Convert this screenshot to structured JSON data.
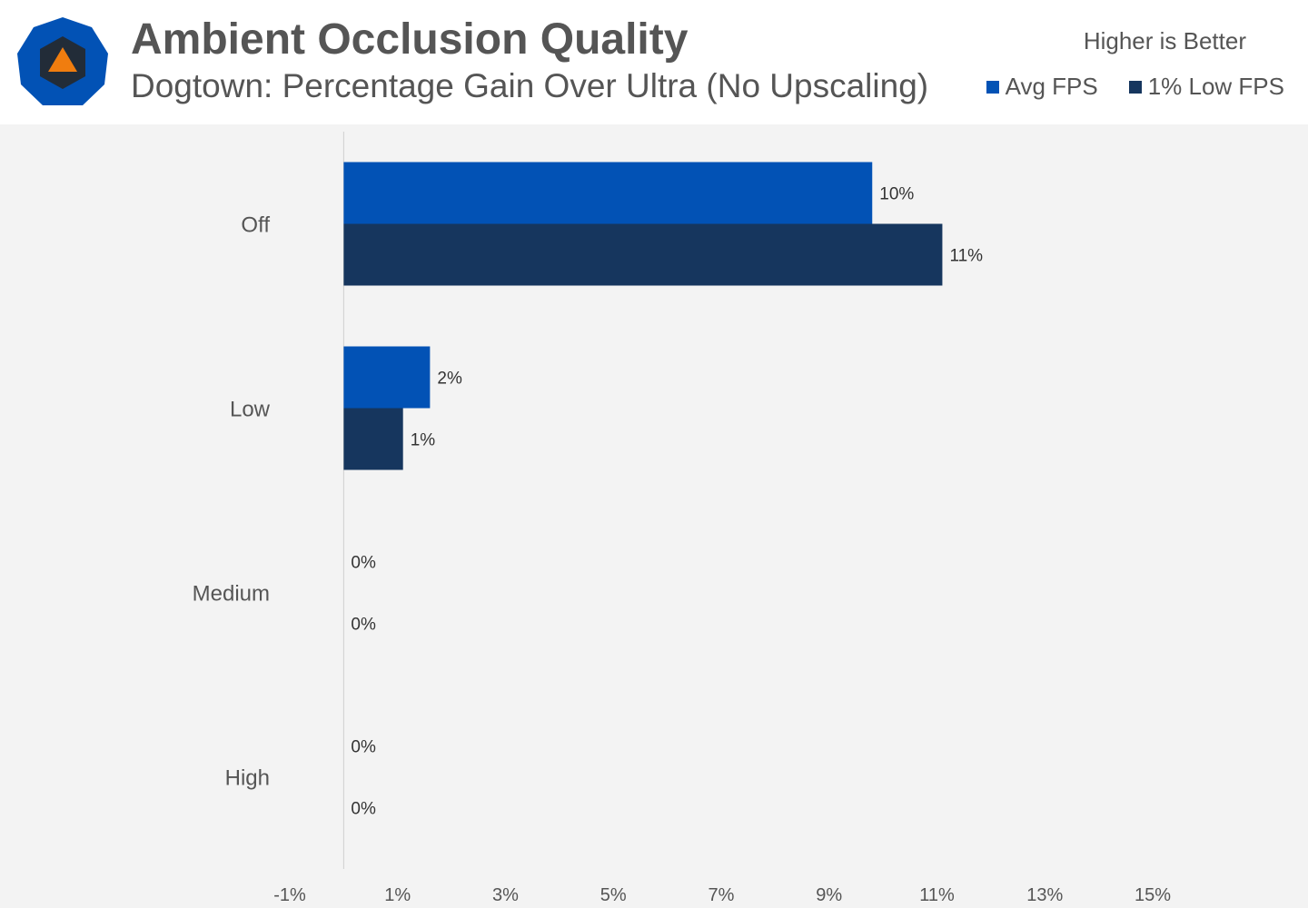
{
  "header": {
    "title": "Ambient Occlusion Quality",
    "subtitle": "Dogtown: Percentage Gain Over Ultra (No Upscaling)",
    "note": "Higher is Better",
    "logo_icon": "techspot-logo-icon"
  },
  "colors": {
    "avg_fps": "#0252b5",
    "low_fps": "#16365e",
    "logo_outer": "#0252b5",
    "logo_inner": "#222c38",
    "logo_triangle": "#f07d0f",
    "text": "#555555",
    "value_label": "#333333",
    "plot_background": "#f3f3f3"
  },
  "chart_data": {
    "type": "bar",
    "orientation": "horizontal",
    "categories": [
      "Off",
      "Low",
      "Medium",
      "High"
    ],
    "series": [
      {
        "name": "Avg FPS",
        "values": [
          9.8,
          1.6,
          0,
          0
        ],
        "labels": [
          "10%",
          "2%",
          "0%",
          "0%"
        ]
      },
      {
        "name": "1% Low FPS",
        "values": [
          11.1,
          1.1,
          0,
          0
        ],
        "labels": [
          "11%",
          "1%",
          "0%",
          "0%"
        ]
      }
    ],
    "xlim": [
      -1,
      15
    ],
    "xticks": [
      "-1%",
      "1%",
      "3%",
      "5%",
      "7%",
      "9%",
      "11%",
      "13%",
      "15%"
    ],
    "xtick_values": [
      -1,
      1,
      3,
      5,
      7,
      9,
      11,
      13,
      15
    ],
    "xlabel": "",
    "ylabel": "",
    "grid": false,
    "legend_position": "top-right"
  }
}
